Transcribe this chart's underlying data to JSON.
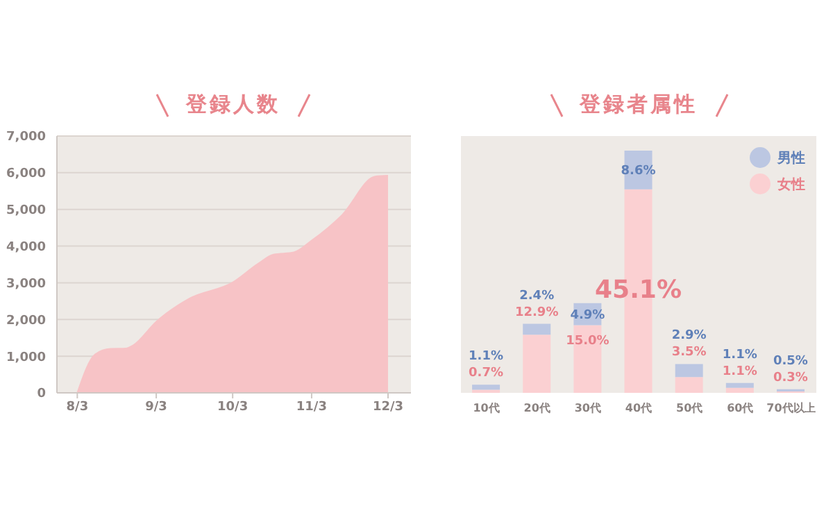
{
  "chart_data": [
    {
      "type": "area",
      "title": "登録人数",
      "color": "#f7c3c6",
      "x": [
        "--08-03",
        "--08-10",
        "--08-16",
        "--08-22",
        "--08-25",
        "--09-03",
        "--09-16",
        "--10-03",
        "--10-13",
        "--10-19",
        "--10-27",
        "--11-03",
        "--11-15",
        "--11-28",
        "--12-03"
      ],
      "values": [
        0,
        1050,
        1200,
        1210,
        1300,
        1940,
        2570,
        3010,
        3520,
        3770,
        3830,
        4150,
        4850,
        5900,
        5920
      ],
      "xlim": [
        "--07-26",
        "--12-12"
      ],
      "xticks": [
        {
          "value": "--08-03",
          "label": "8/3"
        },
        {
          "value": "--09-03",
          "label": "9/3"
        },
        {
          "value": "--10-03",
          "label": "10/3"
        },
        {
          "value": "--11-03",
          "label": "11/3"
        },
        {
          "value": "--12-03",
          "label": "12/3"
        }
      ],
      "ylim": [
        0,
        7000
      ],
      "yticks": [
        0,
        {
          "value": 1000,
          "label": "1,000"
        },
        {
          "value": 2000,
          "label": "2,000"
        },
        {
          "value": 3000,
          "label": "3,000"
        },
        {
          "value": 4000,
          "label": "4,000"
        },
        {
          "value": 5000,
          "label": "5,000"
        },
        {
          "value": 6000,
          "label": "6,000"
        },
        {
          "value": 7000,
          "label": "7,000"
        }
      ],
      "grid": "y"
    },
    {
      "type": "bar",
      "title": "登録者属性",
      "stacked": true,
      "legend": "top right",
      "categories": [
        "10代",
        "20代",
        "30代",
        "40代",
        "50代",
        "60代",
        "70代以上"
      ],
      "series": [
        {
          "name": "女性",
          "color": "#fbd0d2",
          "values": [
            0.7,
            12.9,
            15.0,
            45.1,
            3.5,
            1.1,
            0.3
          ],
          "value_labels": [
            "0.7%",
            "12.9%",
            "15.0%",
            "45.1%",
            "3.5%",
            "1.1%",
            "0.3%"
          ]
        },
        {
          "name": "男性",
          "color": "#bcc7e2",
          "values": [
            1.1,
            2.4,
            4.9,
            8.6,
            2.9,
            1.1,
            0.5
          ],
          "value_labels": [
            "1.1%",
            "2.4%",
            "4.9%",
            "8.6%",
            "2.9%",
            "1.1%",
            "0.5%"
          ]
        }
      ]
    }
  ]
}
